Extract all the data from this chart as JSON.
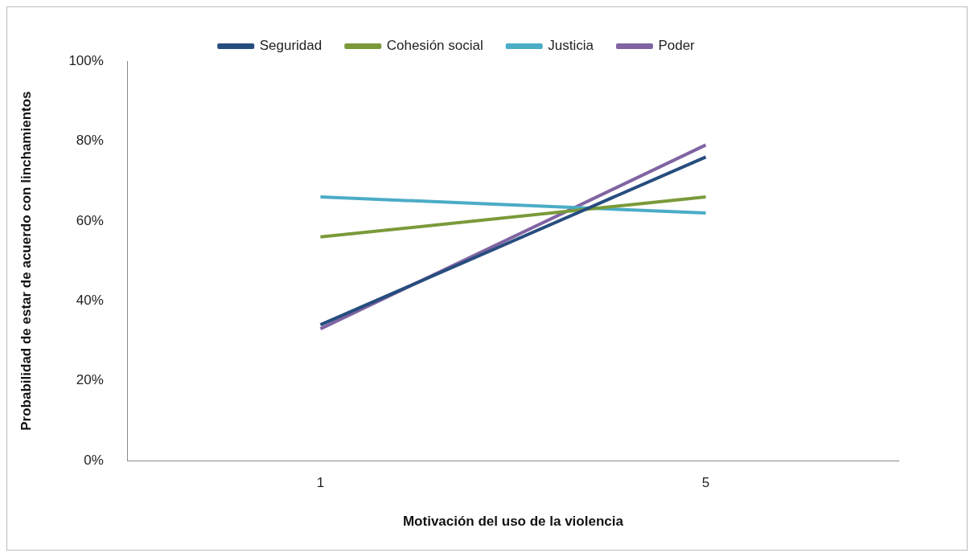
{
  "chart_data": {
    "type": "line",
    "xlabel": "Motivación del uso de la violencia",
    "ylabel": "Probabilidad de estar de acuerdo con linchamientos",
    "categories": [
      "1",
      "5"
    ],
    "series": [
      {
        "name": "Seguridad",
        "color": "#264d7e",
        "values": [
          34,
          76
        ]
      },
      {
        "name": "Cohesión social",
        "color": "#7a9a3a",
        "values": [
          56,
          66
        ]
      },
      {
        "name": "Justicia",
        "color": "#4bacc6",
        "values": [
          66,
          62
        ]
      },
      {
        "name": "Poder",
        "color": "#8064a2",
        "values": [
          33,
          79
        ]
      }
    ],
    "ylim": [
      0,
      100
    ],
    "yticks": [
      {
        "value": 0,
        "label": "0%"
      },
      {
        "value": 20,
        "label": "20%"
      },
      {
        "value": 40,
        "label": "40%"
      },
      {
        "value": 60,
        "label": "60%"
      },
      {
        "value": 80,
        "label": "80%"
      },
      {
        "value": 100,
        "label": "100%"
      }
    ],
    "grid": false,
    "legend": "top",
    "marker": "none",
    "line_style": "solid"
  }
}
